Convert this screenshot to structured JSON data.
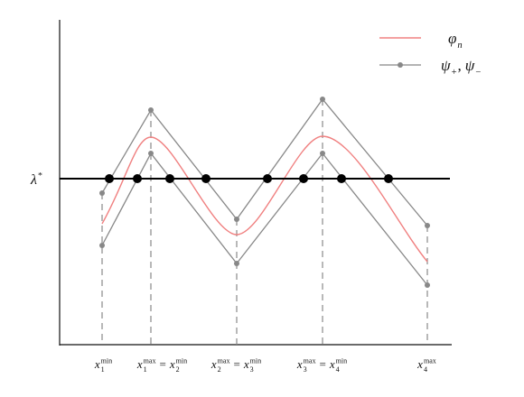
{
  "lambda": {
    "base": "λ",
    "sup": "*"
  },
  "legend": {
    "phi": {
      "base": "φ",
      "sub": "n"
    },
    "psi": [
      {
        "base": "ψ",
        "sub": "+"
      },
      {
        "base": "ψ",
        "sub": "−"
      }
    ],
    "separator": ","
  },
  "x_labels": [
    {
      "terms": [
        {
          "base": "x",
          "sub": "1",
          "sup": "min"
        }
      ]
    },
    {
      "terms": [
        {
          "base": "x",
          "sub": "1",
          "sup": "max"
        },
        {
          "base": "x",
          "sub": "2",
          "sup": "min"
        }
      ],
      "relation": "="
    },
    {
      "terms": [
        {
          "base": "x",
          "sub": "2",
          "sup": "max"
        },
        {
          "base": "x",
          "sub": "3",
          "sup": "min"
        }
      ],
      "relation": "="
    },
    {
      "terms": [
        {
          "base": "x",
          "sub": "3",
          "sup": "max"
        },
        {
          "base": "x",
          "sub": "4",
          "sup": "min"
        }
      ],
      "relation": "="
    },
    {
      "terms": [
        {
          "base": "x",
          "sub": "4",
          "sup": "max"
        }
      ]
    }
  ]
}
